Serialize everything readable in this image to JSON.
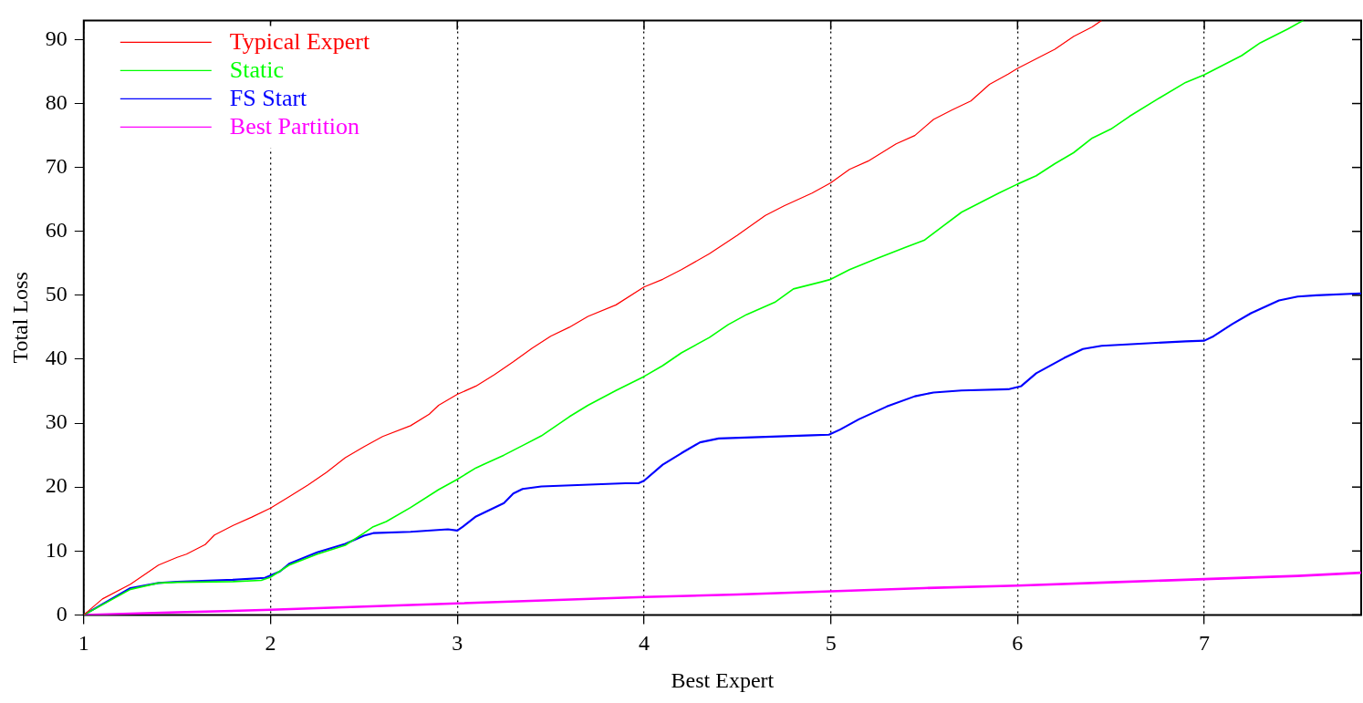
{
  "chart_data": {
    "type": "line",
    "xlabel": "Best Expert",
    "ylabel": "Total Loss",
    "xlim": [
      1,
      7.84
    ],
    "ylim": [
      0,
      93
    ],
    "xticks": [
      1,
      2,
      3,
      4,
      5,
      6,
      7
    ],
    "yticks": [
      0,
      10,
      20,
      30,
      40,
      50,
      60,
      70,
      80,
      90
    ],
    "grid": "x",
    "legend": "top left",
    "marker": "none",
    "line_style": "solid",
    "series": [
      {
        "name": "Typical Expert",
        "color": "#ff0000",
        "x": [
          1,
          1.1,
          1.25,
          1.4,
          1.5,
          1.55,
          1.65,
          1.7,
          1.8,
          1.9,
          2,
          2.1,
          2.2,
          2.3,
          2.4,
          2.5,
          2.6,
          2.75,
          2.85,
          2.9,
          3,
          3.1,
          3.2,
          3.3,
          3.4,
          3.5,
          3.6,
          3.7,
          3.85,
          4,
          4.1,
          4.2,
          4.35,
          4.5,
          4.65,
          4.75,
          4.9,
          5,
          5.1,
          5.2,
          5.35,
          5.45,
          5.55,
          5.65,
          5.75,
          5.85,
          5.95,
          6,
          6.1,
          6.2,
          6.3,
          6.4,
          6.45
        ],
        "values": [
          0,
          2.5,
          4.8,
          7.8,
          9,
          9.5,
          11,
          12.5,
          14,
          15.3,
          16.7,
          18.5,
          20.3,
          22.3,
          24.6,
          26.3,
          27.9,
          29.6,
          31.4,
          32.8,
          34.5,
          35.8,
          37.6,
          39.6,
          41.7,
          43.6,
          45,
          46.7,
          48.5,
          51.3,
          52.5,
          54,
          56.5,
          59.4,
          62.5,
          64,
          66,
          67.6,
          69.7,
          71,
          73.7,
          75,
          77.5,
          79,
          80.4,
          83,
          84.6,
          85.5,
          87,
          88.5,
          90.5,
          92,
          93
        ]
      },
      {
        "name": "Static",
        "color": "#00ff00",
        "x": [
          1,
          1.25,
          1.4,
          1.5,
          1.8,
          1.95,
          2,
          2.1,
          2.25,
          2.4,
          2.5,
          2.55,
          2.62,
          2.75,
          2.9,
          3,
          3.1,
          3.25,
          3.35,
          3.45,
          3.6,
          3.7,
          3.85,
          4,
          4.1,
          4.2,
          4.35,
          4.45,
          4.55,
          4.7,
          4.8,
          4.95,
          5,
          5.1,
          5.25,
          5.4,
          5.5,
          5.6,
          5.7,
          5.8,
          5.9,
          6,
          6.1,
          6.2,
          6.3,
          6.4,
          6.5,
          6.6,
          6.75,
          6.9,
          7,
          7.1,
          7.2,
          7.3,
          7.45,
          7.53
        ],
        "values": [
          0,
          4,
          5,
          5.1,
          5.2,
          5.4,
          5.9,
          7.8,
          9.5,
          10.9,
          12.8,
          13.8,
          14.6,
          16.8,
          19.6,
          21.2,
          23,
          25,
          26.5,
          28,
          31,
          32.8,
          35.1,
          37.3,
          39,
          41,
          43.4,
          45.4,
          47,
          48.9,
          51,
          52.1,
          52.5,
          54,
          55.8,
          57.5,
          58.6,
          60.8,
          63,
          64.5,
          66,
          67.4,
          68.7,
          70.6,
          72.3,
          74.6,
          76,
          78,
          80.7,
          83.3,
          84.5,
          86,
          87.5,
          89.5,
          91.7,
          93
        ]
      },
      {
        "name": "FS Start",
        "color": "#0000ff",
        "x": [
          1,
          1.25,
          1.4,
          1.5,
          1.8,
          1.97,
          2.05,
          2.1,
          2.25,
          2.4,
          2.5,
          2.55,
          2.75,
          2.95,
          3,
          3.03,
          3.1,
          3.25,
          3.3,
          3.35,
          3.45,
          3.9,
          3.97,
          4,
          4.1,
          4.2,
          4.3,
          4.4,
          4.9,
          4.99,
          5.05,
          5.15,
          5.3,
          5.45,
          5.55,
          5.7,
          5.95,
          6.02,
          6.1,
          6.25,
          6.35,
          6.45,
          6.9,
          7,
          7.05,
          7.15,
          7.25,
          7.4,
          7.5,
          7.6,
          7.84
        ],
        "values": [
          0,
          4.2,
          5,
          5.2,
          5.5,
          5.8,
          6.8,
          8,
          9.8,
          11.1,
          12.4,
          12.8,
          13,
          13.4,
          13.2,
          13.8,
          15.4,
          17.5,
          19,
          19.7,
          20.1,
          20.6,
          20.6,
          21,
          23.5,
          25.3,
          27,
          27.6,
          28.1,
          28.2,
          29,
          30.6,
          32.6,
          34.2,
          34.8,
          35.1,
          35.3,
          35.8,
          37.8,
          40.2,
          41.6,
          42.1,
          42.8,
          42.9,
          43.6,
          45.5,
          47.2,
          49.2,
          49.8,
          50,
          50.3
        ]
      },
      {
        "name": "Best Partition",
        "color": "#ff00ff",
        "x": [
          1,
          1.5,
          2,
          2.5,
          3,
          3.5,
          4,
          4.5,
          5,
          5.5,
          6,
          6.5,
          7,
          7.5,
          7.84
        ],
        "values": [
          0,
          0.4,
          0.8,
          1.3,
          1.8,
          2.3,
          2.8,
          3.2,
          3.7,
          4.2,
          4.6,
          5.1,
          5.6,
          6.1,
          6.6
        ]
      }
    ]
  }
}
